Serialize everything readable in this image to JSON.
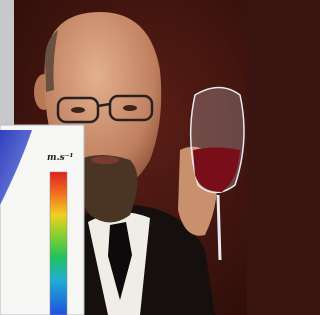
{
  "inset": {
    "unit_label": "m.s⁻¹"
  }
}
